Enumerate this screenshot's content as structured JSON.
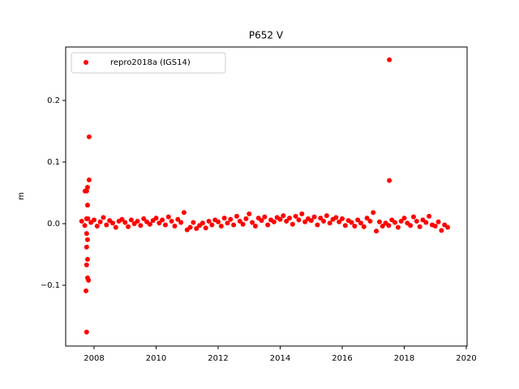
{
  "chart_data": {
    "type": "scatter",
    "title": "P652 V",
    "ylabel": "m",
    "series": [
      {
        "name": "repro2018a (IGS14)",
        "color": "#ff0000",
        "x": [
          2007.6,
          2007.7,
          2007.8,
          2007.9,
          2008.0,
          2008.1,
          2008.2,
          2008.3,
          2008.4,
          2008.5,
          2008.6,
          2008.7,
          2008.8,
          2008.9,
          2009.0,
          2009.1,
          2009.2,
          2009.3,
          2009.4,
          2009.5,
          2009.6,
          2009.7,
          2009.8,
          2009.9,
          2010.0,
          2010.1,
          2010.2,
          2010.3,
          2010.4,
          2010.5,
          2010.6,
          2010.7,
          2010.8,
          2010.9,
          2011.0,
          2011.1,
          2011.2,
          2011.3,
          2011.4,
          2011.5,
          2011.6,
          2011.7,
          2011.8,
          2011.9,
          2012.0,
          2012.1,
          2012.2,
          2012.3,
          2012.4,
          2012.5,
          2012.6,
          2012.7,
          2012.8,
          2012.9,
          2013.0,
          2013.1,
          2013.2,
          2013.3,
          2013.4,
          2013.5,
          2013.6,
          2013.7,
          2013.8,
          2013.9,
          2014.0,
          2014.1,
          2014.2,
          2014.3,
          2014.4,
          2014.5,
          2014.6,
          2014.7,
          2014.8,
          2014.9,
          2015.0,
          2015.1,
          2015.2,
          2015.3,
          2015.4,
          2015.5,
          2015.6,
          2015.7,
          2015.8,
          2015.9,
          2016.0,
          2016.1,
          2016.2,
          2016.3,
          2016.4,
          2016.5,
          2016.6,
          2016.7,
          2016.8,
          2016.9,
          2017.0,
          2017.1,
          2017.2,
          2017.3,
          2017.4,
          2017.5,
          2017.6,
          2017.7,
          2017.8,
          2017.9,
          2018.0,
          2018.1,
          2018.2,
          2018.3,
          2018.4,
          2018.5,
          2018.6,
          2018.7,
          2018.8,
          2018.9,
          2019.0,
          2019.1,
          2019.2,
          2019.3,
          2019.4,
          2007.84,
          2007.84,
          2007.79,
          2007.76,
          2007.71,
          2007.79,
          2007.76,
          2007.76,
          2007.79,
          2007.76,
          2007.79,
          2007.76,
          2007.79,
          2007.82,
          2007.74,
          2007.76,
          2017.52,
          2017.52
        ],
        "values": [
          0.004,
          -0.003,
          0.008,
          0.002,
          0.006,
          -0.004,
          0.003,
          0.01,
          -0.002,
          0.005,
          0.001,
          -0.006,
          0.004,
          0.007,
          0.002,
          -0.005,
          0.006,
          0.0,
          0.004,
          -0.003,
          0.008,
          0.003,
          -0.001,
          0.005,
          0.009,
          0.001,
          0.006,
          -0.002,
          0.011,
          0.004,
          -0.004,
          0.007,
          0.002,
          0.018,
          -0.01,
          -0.006,
          0.002,
          -0.008,
          -0.003,
          0.001,
          -0.007,
          0.004,
          -0.002,
          0.006,
          0.003,
          -0.004,
          0.009,
          0.001,
          0.007,
          -0.002,
          0.012,
          0.004,
          -0.001,
          0.008,
          0.016,
          0.002,
          -0.004,
          0.009,
          0.005,
          0.011,
          -0.002,
          0.006,
          0.003,
          0.01,
          0.007,
          0.013,
          0.004,
          0.009,
          -0.001,
          0.012,
          0.006,
          0.016,
          0.003,
          0.008,
          0.005,
          0.011,
          -0.002,
          0.009,
          0.004,
          0.013,
          0.001,
          0.007,
          0.01,
          0.003,
          0.008,
          -0.003,
          0.005,
          0.002,
          -0.004,
          0.006,
          0.001,
          -0.005,
          0.009,
          0.004,
          0.018,
          -0.012,
          0.003,
          -0.004,
          0.001,
          -0.003,
          0.006,
          0.002,
          -0.006,
          0.004,
          0.009,
          0.001,
          -0.003,
          0.011,
          0.004,
          -0.005,
          0.006,
          0.002,
          0.012,
          -0.002,
          -0.004,
          0.003,
          -0.011,
          -0.002,
          -0.006,
          0.141,
          0.071,
          0.059,
          0.053,
          0.053,
          0.03,
          0.008,
          -0.016,
          -0.026,
          -0.038,
          -0.058,
          -0.067,
          -0.088,
          -0.092,
          -0.109,
          -0.176,
          0.266,
          0.07
        ]
      }
    ],
    "xlim": [
      2007.085,
      2020.026
    ],
    "ylim": [
      -0.1987,
      0.2868
    ],
    "xticks": [
      2008,
      2010,
      2012,
      2014,
      2016,
      2018,
      2020
    ],
    "yticks": [
      {
        "value": -0.1,
        "label": "−0.1"
      },
      {
        "value": 0.0,
        "label": "0.0"
      },
      0.1,
      0.2
    ],
    "grid": false,
    "legend": "upper left"
  }
}
